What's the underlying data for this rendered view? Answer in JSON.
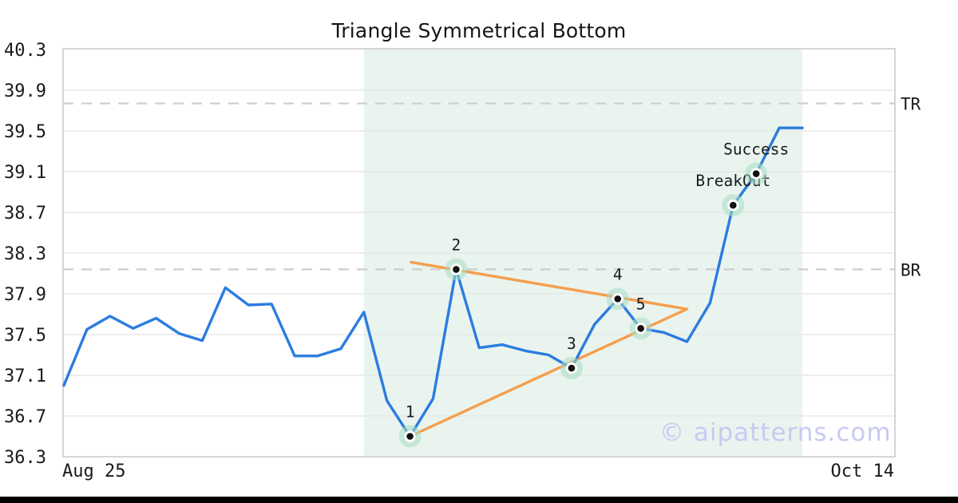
{
  "title": "Triangle Symmetrical Bottom",
  "watermark": "© aipatterns.com",
  "chart_data": {
    "type": "line",
    "title": "Triangle Symmetrical Bottom",
    "x_axis": {
      "start_label": "Aug 25",
      "end_label": "Oct 14"
    },
    "y_axis": {
      "ticks": [
        40.3,
        39.9,
        39.5,
        39.1,
        38.7,
        38.3,
        37.9,
        37.5,
        37.1,
        36.7,
        36.3
      ],
      "ylim": [
        36.3,
        40.3
      ]
    },
    "grid": true,
    "legend": "none",
    "series": [
      {
        "name": "price",
        "values": [
          37.0,
          37.55,
          37.68,
          37.56,
          37.66,
          37.51,
          37.44,
          37.96,
          37.79,
          37.8,
          37.29,
          37.29,
          37.36,
          37.72,
          36.85,
          36.5,
          36.87,
          38.14,
          37.37,
          37.4,
          37.34,
          37.3,
          37.17,
          37.6,
          37.85,
          37.56,
          37.52,
          37.43,
          37.81,
          38.77,
          39.08,
          39.53,
          39.53
        ]
      }
    ],
    "pattern_markers": [
      {
        "label": "1",
        "index": 15,
        "value": 36.5
      },
      {
        "label": "2",
        "index": 17,
        "value": 38.14
      },
      {
        "label": "3",
        "index": 22,
        "value": 37.17
      },
      {
        "label": "4",
        "index": 24,
        "value": 37.85
      },
      {
        "label": "5",
        "index": 25,
        "value": 37.56
      },
      {
        "label": "BreakOut",
        "index": 29,
        "value": 38.77
      },
      {
        "label": "Success",
        "index": 30,
        "value": 39.08
      }
    ],
    "hlines": [
      {
        "label": "TR",
        "value": 39.77,
        "style": "dashed"
      },
      {
        "label": "BR",
        "value": 38.14,
        "style": "dashed"
      }
    ],
    "trendlines": [
      {
        "name": "upper",
        "from": {
          "index": 15.05,
          "value": 38.21
        },
        "to": {
          "index": 27,
          "value": 37.75
        }
      },
      {
        "name": "lower",
        "from": {
          "index": 15.0,
          "value": 36.5
        },
        "to": {
          "index": 27,
          "value": 37.75
        }
      }
    ],
    "pattern_region": {
      "from_index": 13,
      "to_index": 32
    },
    "colors": {
      "price_line": "#2b7ce0",
      "trendline": "#f59e4c",
      "pattern_region": "#e9f4ef",
      "marker_halo": "#a8dcc2",
      "marker_ring": "#ffffff",
      "marker_dot": "#111111",
      "hline": "#cdcdcd",
      "grid": "#e7e7e7",
      "border": "#d5d5d5",
      "text": "#1a1a1a",
      "watermark": "#c8caf1"
    }
  }
}
